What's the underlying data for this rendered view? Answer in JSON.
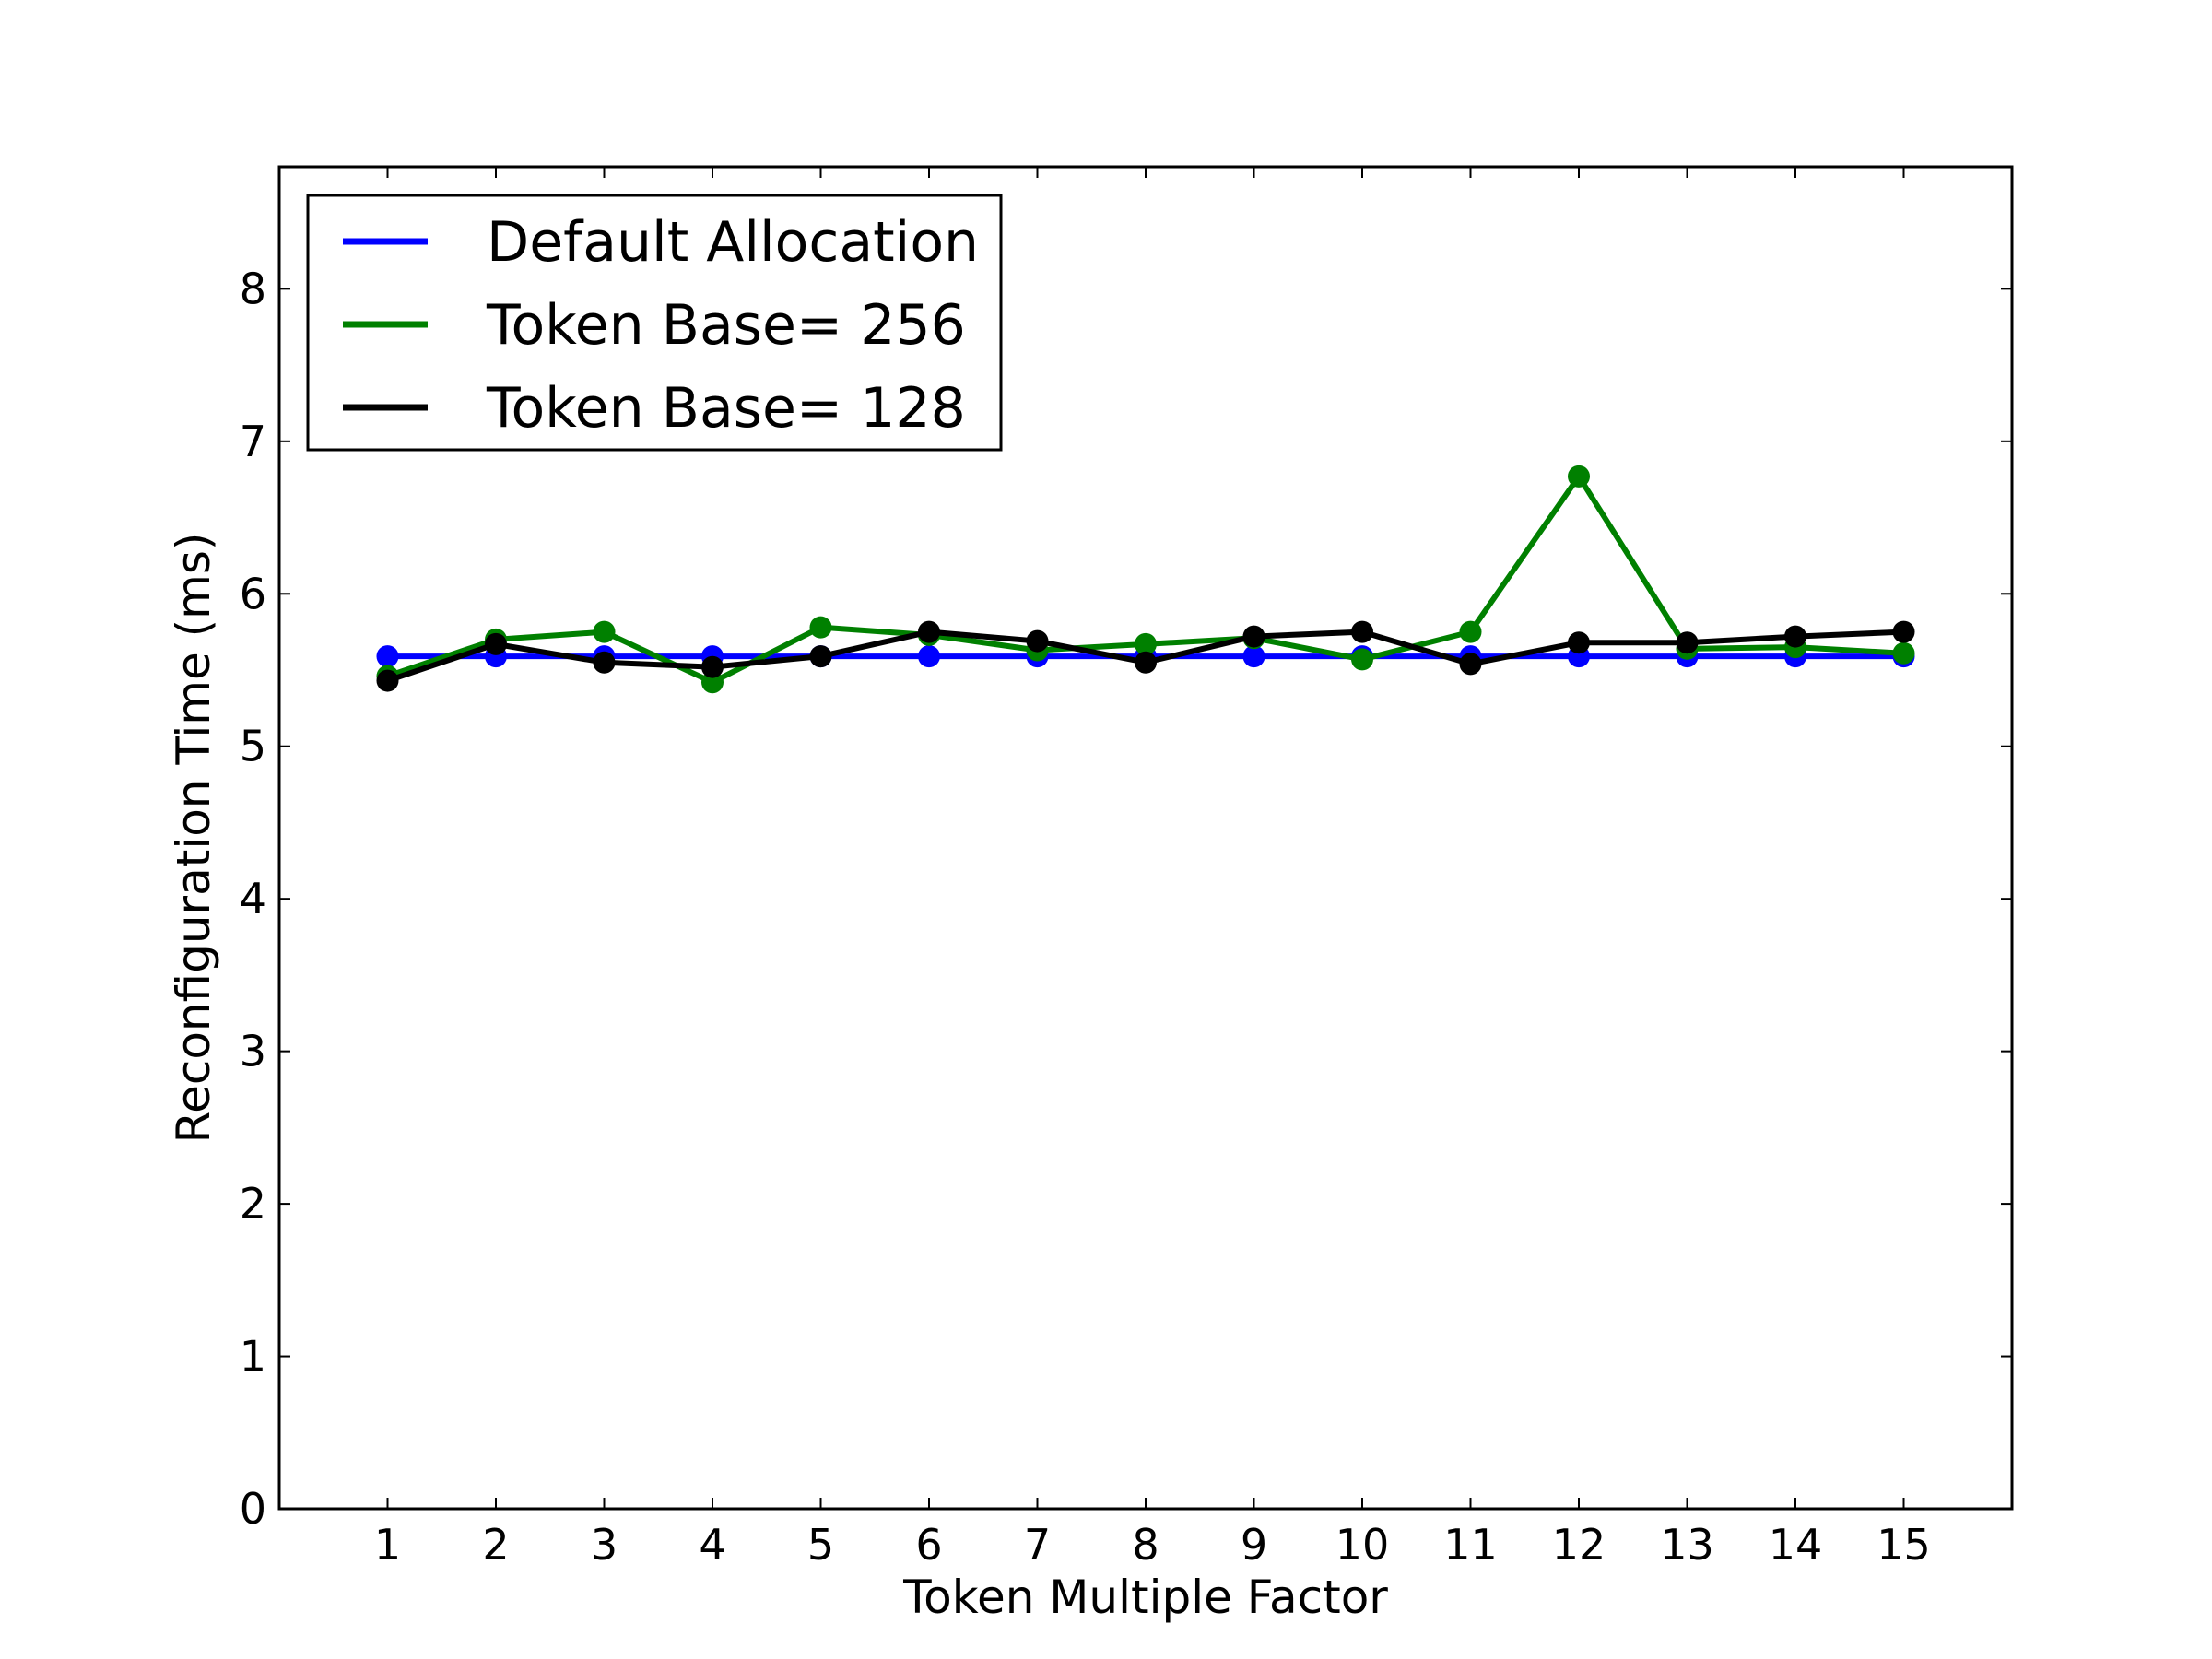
{
  "chart_data": {
    "type": "line",
    "title": "",
    "xlabel": "Token Multiple Factor",
    "ylabel": "Reconfiguration Time (ms)",
    "x": [
      1,
      2,
      3,
      4,
      5,
      6,
      7,
      8,
      9,
      10,
      11,
      12,
      13,
      14,
      15
    ],
    "x_tick_labels": [
      "1",
      "2",
      "3",
      "4",
      "5",
      "6",
      "7",
      "8",
      "9",
      "10",
      "11",
      "12",
      "13",
      "14",
      "15"
    ],
    "xlim": [
      0,
      16
    ],
    "ylim": [
      0,
      8.8
    ],
    "y_ticks": [
      0,
      1,
      2,
      3,
      4,
      5,
      6,
      7,
      8
    ],
    "y_tick_labels": [
      "0",
      "1",
      "2",
      "3",
      "4",
      "5",
      "6",
      "7",
      "8"
    ],
    "grid": false,
    "legend_position": "top-left",
    "series": [
      {
        "name": "Default Allocation",
        "color": "#0000ff",
        "values": [
          5.59,
          5.59,
          5.59,
          5.59,
          5.59,
          5.59,
          5.59,
          5.59,
          5.59,
          5.59,
          5.59,
          5.59,
          5.59,
          5.59,
          5.59
        ]
      },
      {
        "name": "Token Base= 256",
        "color": "#008000",
        "values": [
          5.46,
          5.7,
          5.75,
          5.42,
          5.78,
          5.73,
          5.63,
          5.67,
          5.71,
          5.57,
          5.75,
          6.77,
          5.64,
          5.65,
          5.61
        ]
      },
      {
        "name": "Token Base= 128",
        "color": "#000000",
        "values": [
          5.43,
          5.67,
          5.55,
          5.52,
          5.59,
          5.75,
          5.69,
          5.55,
          5.72,
          5.75,
          5.54,
          5.68,
          5.68,
          5.72,
          5.75
        ]
      }
    ]
  }
}
